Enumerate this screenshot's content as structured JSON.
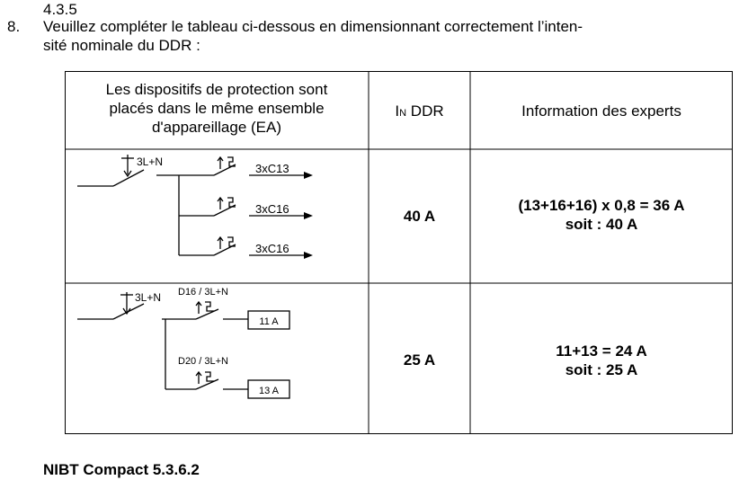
{
  "section_number": "4.3.5",
  "question": {
    "number": "8.",
    "line1": "Veuillez compléter le tableau ci-dessous en dimensionnant correctement l’inten-",
    "line2": "sité nominale du DDR :"
  },
  "table": {
    "headers": {
      "col1_line1": "Les dispositifs de protection sont",
      "col1_line2": "placés dans le même ensemble",
      "col1_line3": "d'appareillage (EA)",
      "col2_main": "I",
      "col2_sub": "N",
      "col2_rest": " DDR",
      "col3": "Information des experts"
    },
    "rows": [
      {
        "diagram": {
          "supply_label": "3L+N",
          "feeders": [
            "3xC13",
            "3xC16",
            "3xC16"
          ]
        },
        "in_ddr": "40 A",
        "info_line1": "(13+16+16) x 0,8 = 36 A",
        "info_line2": "soit : 40 A"
      },
      {
        "diagram": {
          "supply_label": "3L+N",
          "branches": [
            {
              "device": "D16 / 3L+N",
              "load": "11 A"
            },
            {
              "device": "D20 / 3L+N",
              "load": "13 A"
            }
          ]
        },
        "in_ddr": "25 A",
        "info_line1": "11+13 = 24 A",
        "info_line2": "soit : 25 A"
      }
    ]
  },
  "footer_reference": "NIBT Compact 5.3.6.2"
}
